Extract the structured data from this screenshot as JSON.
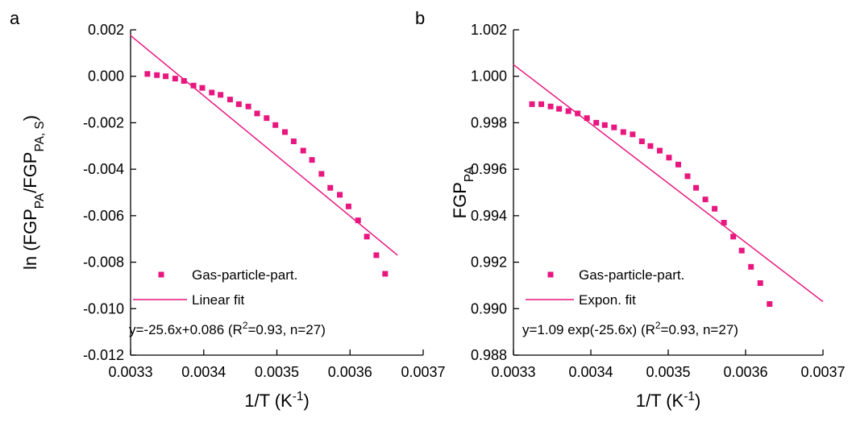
{
  "chart_data": [
    {
      "type": "scatter",
      "panel": "a",
      "ylabel": [
        {
          "text": "ln (FGP"
        },
        {
          "text": "PA",
          "shift": "sub"
        },
        {
          "text": "/FGP"
        },
        {
          "text": "PA, S",
          "shift": "sub"
        },
        {
          "text": ")"
        }
      ],
      "xlabel": [
        {
          "text": "1/T (K"
        },
        {
          "text": "-1",
          "shift": "sup"
        },
        {
          "text": ")"
        }
      ],
      "annotation": [
        {
          "text": "y=-25.6x+0.086 (R"
        },
        {
          "text": "2",
          "shift": "sup"
        },
        {
          "text": "=0.93, n=27)"
        }
      ],
      "xlim": [
        0.0033,
        0.0037
      ],
      "xticks": [
        0.0033,
        0.0034,
        0.0035,
        0.0036,
        0.0037
      ],
      "ylim": [
        -0.012,
        0.002
      ],
      "yticks": [
        {
          "value": -0.012,
          "label": "-0.012"
        },
        {
          "value": -0.01,
          "label": "-0.010"
        },
        {
          "value": -0.008,
          "label": "-0.008"
        },
        {
          "value": -0.006,
          "label": "-0.006"
        },
        {
          "value": -0.004,
          "label": "-0.004"
        },
        {
          "value": -0.002,
          "label": "-0.002"
        },
        {
          "value": 0,
          "label": "0.000"
        },
        {
          "value": 0.002,
          "label": "0.002"
        }
      ],
      "series": [
        {
          "name": "Gas-particle-part.",
          "color": "#e8177f",
          "marker": "square",
          "x": [
            0.003323,
            0.003336,
            0.003348,
            0.003361,
            0.003373,
            0.003386,
            0.003398,
            0.003411,
            0.003423,
            0.003436,
            0.003448,
            0.003461,
            0.003473,
            0.003486,
            0.003498,
            0.003511,
            0.003523,
            0.003536,
            0.003548,
            0.003561,
            0.003573,
            0.003586,
            0.003598,
            0.003611,
            0.003623,
            0.003636,
            0.003648
          ],
          "values": [
            0.0001,
            5e-05,
            0.0,
            -0.0001,
            -0.0002,
            -0.0004,
            -0.0005,
            -0.0007,
            -0.0008,
            -0.001,
            -0.0012,
            -0.0013,
            -0.0016,
            -0.0018,
            -0.0021,
            -0.0024,
            -0.0028,
            -0.0032,
            -0.0036,
            -0.0042,
            -0.0048,
            -0.0051,
            -0.0056,
            -0.0062,
            -0.0069,
            -0.0077,
            -0.0085
          ]
        },
        {
          "name": "Linear fit",
          "color": "#e8177f",
          "marker": "line",
          "x": [
            0.0033,
            0.003665
          ],
          "values": [
            0.00175,
            -0.0077
          ]
        }
      ]
    },
    {
      "type": "scatter",
      "panel": "b",
      "ylabel": [
        {
          "text": "FGP"
        },
        {
          "text": "PA",
          "shift": "sub"
        }
      ],
      "xlabel": [
        {
          "text": "1/T (K"
        },
        {
          "text": "-1",
          "shift": "sup"
        },
        {
          "text": ")"
        }
      ],
      "annotation": [
        {
          "text": "y=1.09 exp(-25.6x) (R"
        },
        {
          "text": "2",
          "shift": "sup"
        },
        {
          "text": "=0.93, n=27)"
        }
      ],
      "xlim": [
        0.0033,
        0.0037
      ],
      "xticks": [
        0.0033,
        0.0034,
        0.0035,
        0.0036,
        0.0037
      ],
      "ylim": [
        0.988,
        1.002
      ],
      "yticks": [
        {
          "value": 0.988,
          "label": "0.988"
        },
        {
          "value": 0.99,
          "label": "0.990"
        },
        {
          "value": 0.992,
          "label": "0.992"
        },
        {
          "value": 0.994,
          "label": "0.994"
        },
        {
          "value": 0.996,
          "label": "0.996"
        },
        {
          "value": 0.998,
          "label": "0.998"
        },
        {
          "value": 1,
          "label": "1.000"
        },
        {
          "value": 1.002,
          "label": "1.002"
        }
      ],
      "series": [
        {
          "name": "Gas-particle-part.",
          "color": "#e8177f",
          "marker": "square",
          "x": [
            0.003324,
            0.003336,
            0.003348,
            0.003359,
            0.003371,
            0.003383,
            0.003395,
            0.003407,
            0.003418,
            0.00343,
            0.003442,
            0.003454,
            0.003466,
            0.003477,
            0.003489,
            0.003501,
            0.003513,
            0.003525,
            0.003536,
            0.003548,
            0.00356,
            0.003572,
            0.003584,
            0.003595,
            0.003607,
            0.003619,
            0.003631
          ],
          "values": [
            0.9988,
            0.9988,
            0.9987,
            0.9986,
            0.9985,
            0.9984,
            0.9982,
            0.998,
            0.9979,
            0.9978,
            0.9976,
            0.9975,
            0.9972,
            0.997,
            0.9968,
            0.9965,
            0.9962,
            0.9957,
            0.9952,
            0.9947,
            0.9943,
            0.9937,
            0.9931,
            0.9925,
            0.9918,
            0.9911,
            0.9902
          ]
        },
        {
          "name": "Expon. fit",
          "color": "#e8177f",
          "marker": "line",
          "x": [
            0.0033,
            0.0037
          ],
          "values": [
            1.0005,
            0.9903
          ]
        }
      ]
    }
  ]
}
